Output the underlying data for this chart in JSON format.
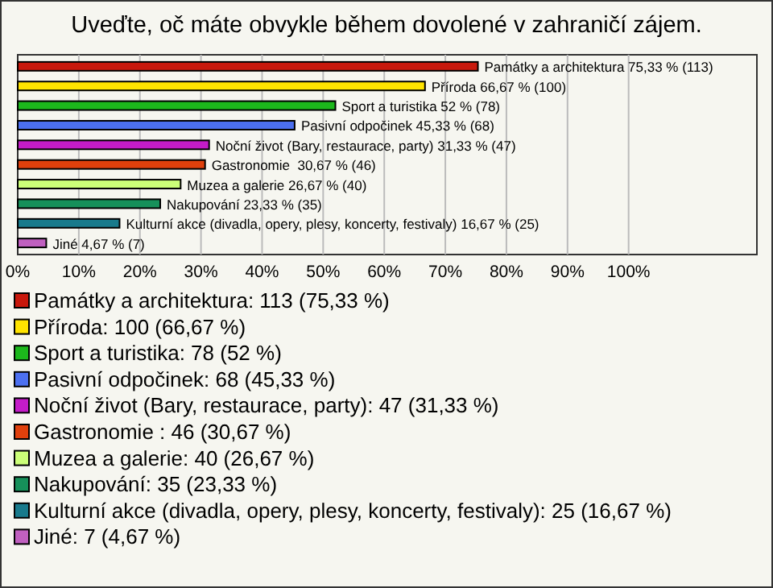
{
  "chart_data": {
    "type": "bar",
    "orientation": "horizontal",
    "title": "Uveďte, oč máte obvykle během dovolené v zahraničí zájem.",
    "categories": [
      null,
      null,
      null,
      null,
      null,
      null,
      null,
      null,
      null,
      null
    ],
    "values": [
      75.33,
      66.67,
      52,
      45.33,
      31.33,
      30.67,
      26.67,
      23.33,
      16.67,
      4.67
    ],
    "colors": [
      "#c8180c",
      "#ffe400",
      "#1cb81c",
      "#4c70f0",
      "#c41cc8",
      "#e0400c",
      "#ccff78",
      "#16905a",
      "#187a8c",
      "#c060c0"
    ],
    "value_labels": [
      "Památky a architektura 75,33 % (113)",
      "Příroda 66,67 % (100)",
      "Sport a turistika 52 % (78)",
      "Pasivní odpočinek 45,33 % (68)",
      "Noční život (Bary, restaurace, party) 31,33 % (47)",
      "Gastronomie  30,67 % (46)",
      "Muzea a galerie 26,67 % (40)",
      "Nakupování 23,33 % (35)",
      "Kulturní akce (divadla, opery, plesy, koncerty, festivaly) 16,67 % (25)",
      "Jiné 4,67 % (7)"
    ],
    "xlim": [
      0,
      121
    ],
    "xticks": [
      {
        "value": 0,
        "label": "0%"
      },
      {
        "value": 10,
        "label": "10%"
      },
      {
        "value": 20,
        "label": "20%"
      },
      {
        "value": 30,
        "label": "30%"
      },
      {
        "value": 40,
        "label": "40%"
      },
      {
        "value": 50,
        "label": "50%"
      },
      {
        "value": 60,
        "label": "60%"
      },
      {
        "value": 70,
        "label": "70%"
      },
      {
        "value": 80,
        "label": "80%"
      },
      {
        "value": 90,
        "label": "90%"
      },
      {
        "value": 100,
        "label": "100%"
      }
    ],
    "grid": "x",
    "annotations": [
      "Památky a architektura: 113 (75,33 %)",
      "Příroda: 100 (66,67 %)",
      "Sport a turistika: 78 (52 %)",
      "Pasivní odpočinek: 68 (45,33 %)",
      "Noční život (Bary, restaurace, party): 47 (31,33 %)",
      "Gastronomie : 46 (30,67 %)",
      "Muzea a galerie: 40 (26,67 %)",
      "Nakupování: 35 (23,33 %)",
      "Kulturní akce (divadla, opery, plesy, koncerty, festivaly): 25 (16,67 %)",
      "Jiné: 7 (4,67 %)"
    ]
  }
}
